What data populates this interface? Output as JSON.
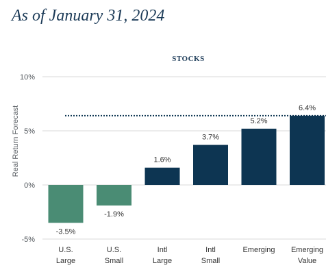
{
  "heading": "As of January 31, 2024",
  "chart_data": {
    "type": "bar",
    "title": "STOCKS",
    "xlabel": "",
    "ylabel": "Real Return Forecast",
    "ylim": [
      -5,
      10
    ],
    "yticks": [
      10,
      5,
      0,
      -5
    ],
    "ytick_labels": [
      "10%",
      "5%",
      "0%",
      "-5%"
    ],
    "categories": [
      [
        "U.S.",
        "Large"
      ],
      [
        "U.S.",
        "Small"
      ],
      [
        "Intl",
        "Large"
      ],
      [
        "Intl",
        "Small"
      ],
      [
        "Emerging"
      ],
      [
        "Emerging",
        "Value"
      ]
    ],
    "values": [
      -3.5,
      -1.9,
      1.6,
      3.7,
      5.2,
      6.4
    ],
    "value_labels": [
      "-3.5%",
      "-1.9%",
      "1.6%",
      "3.7%",
      "5.2%",
      "6.4%"
    ],
    "bar_colors": [
      "#4a8c74",
      "#4a8c74",
      "#0d3552",
      "#0d3552",
      "#0d3552",
      "#0d3552"
    ],
    "reference_line": {
      "value": 6.4,
      "style": "dotted",
      "color": "#0d3552"
    },
    "gridlines": true,
    "grid_color": "#d9d9d9"
  }
}
